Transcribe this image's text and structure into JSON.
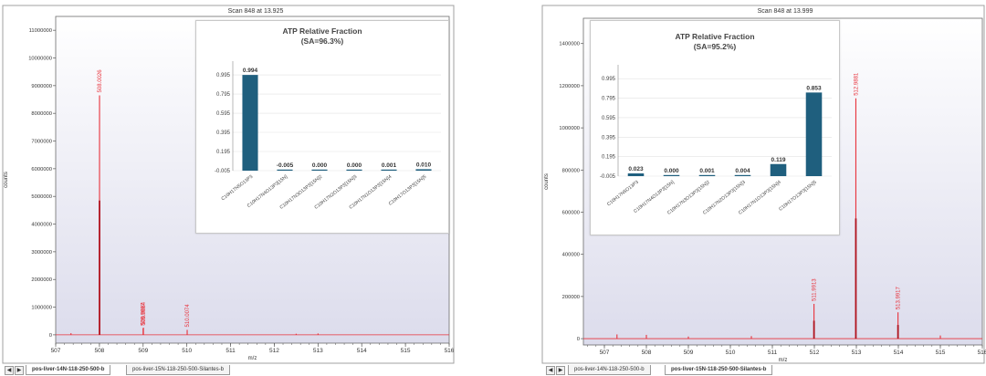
{
  "panels": [
    {
      "scan_title": "Scan 848 at 13.925",
      "tabs": [
        "pos-liver-14N-118-250-500-b",
        "pos-liver-15N-118-250-500-Silantes-b"
      ],
      "active_tab": 0,
      "spectrum": {
        "type": "line",
        "xlabel": "m/z",
        "ylabel": "counts",
        "xlim": [
          507,
          516
        ],
        "ylim": [
          -300000,
          11500000
        ],
        "xticks": [
          507,
          508,
          509,
          510,
          511,
          512,
          513,
          514,
          515,
          516
        ],
        "yticks": [
          0,
          1000000,
          2000000,
          3000000,
          4000000,
          5000000,
          6000000,
          7000000,
          8000000,
          9000000,
          10000000,
          11000000
        ],
        "ytick_labels": [
          "0",
          "1000000",
          "2000000",
          "3000000",
          "4000000",
          "5000000",
          "6000000",
          "7000000",
          "8000000",
          "9000000",
          "10000000",
          "11000000"
        ],
        "peaks": [
          {
            "mz": 508.0026,
            "intensity": 8650000,
            "label": "508.0026"
          },
          {
            "mz": 508.9997,
            "intensity": 230000,
            "label": "508.9997"
          },
          {
            "mz": 509.0064,
            "intensity": 260000,
            "label": "509.0064"
          },
          {
            "mz": 510.0074,
            "intensity": 180000,
            "label": "510.0074"
          },
          {
            "mz": 507.35,
            "intensity": 60000,
            "label": ""
          },
          {
            "mz": 512.5,
            "intensity": 40000,
            "label": ""
          },
          {
            "mz": 513.0,
            "intensity": 50000,
            "label": ""
          }
        ],
        "peak_overlays": [
          {
            "mz": 508.0026,
            "intensity": 4850000
          }
        ]
      },
      "inset": {
        "type": "bar",
        "title": "ATP Relative Fraction",
        "subtitle": "(SA=96.3%)",
        "ylim": [
          -0.005,
          1.1
        ],
        "yticks": [
          -0.005,
          0.195,
          0.395,
          0.595,
          0.795,
          0.995
        ],
        "ytick_labels": [
          "-0.005",
          "0.195",
          "0.395",
          "0.595",
          "0.795",
          "0.995"
        ],
        "categories": [
          "C10H17N5O13P3",
          "C10H17N4O13P3[15N]",
          "C10H17N3O13P3[15N]2",
          "C10H17N2O13P3[15N]3",
          "C10H17N1O13P3[15N]4",
          "C10H17O13P3[15N]5"
        ],
        "values": [
          0.994,
          -0.005,
          0.0,
          0.0,
          0.001,
          0.01
        ],
        "value_labels": [
          "0.994",
          "-0.005",
          "0.000",
          "0.000",
          "0.001",
          "0.010"
        ],
        "bar_color": "#1f5f7e"
      }
    },
    {
      "scan_title": "Scan 848 at 13.999",
      "tabs": [
        "pos-liver-14N-118-250-500-b",
        "pos-liver-15N-118-250-500-Silantes-b"
      ],
      "active_tab": 1,
      "spectrum": {
        "type": "line",
        "xlabel": "m/z",
        "ylabel": "counts",
        "xlim": [
          506.5,
          516
        ],
        "ylim": [
          -30000,
          1520000
        ],
        "xticks": [
          507,
          508,
          509,
          510,
          511,
          512,
          513,
          514,
          515,
          516
        ],
        "yticks": [
          0,
          200000,
          400000,
          600000,
          800000,
          1000000,
          1200000,
          1400000
        ],
        "ytick_labels": [
          "0",
          "200000",
          "400000",
          "600000",
          "800000",
          "1000000",
          "1200000",
          "1400000"
        ],
        "peaks": [
          {
            "mz": 511.9913,
            "intensity": 165000,
            "label": "511.9913"
          },
          {
            "mz": 512.9881,
            "intensity": 1140000,
            "label": "512.9881"
          },
          {
            "mz": 513.9917,
            "intensity": 125000,
            "label": "513.9917"
          },
          {
            "mz": 507.3,
            "intensity": 20000,
            "label": ""
          },
          {
            "mz": 508.0,
            "intensity": 18000,
            "label": ""
          },
          {
            "mz": 509.0,
            "intensity": 10000,
            "label": ""
          },
          {
            "mz": 510.5,
            "intensity": 12000,
            "label": ""
          },
          {
            "mz": 515.0,
            "intensity": 15000,
            "label": ""
          }
        ],
        "peak_overlays": [
          {
            "mz": 512.9881,
            "intensity": 570000
          },
          {
            "mz": 511.9913,
            "intensity": 85000
          },
          {
            "mz": 513.9917,
            "intensity": 65000
          }
        ]
      },
      "inset": {
        "type": "bar",
        "title": "ATP Relative Fraction",
        "subtitle": "(SA=95.2%)",
        "ylim": [
          -0.005,
          1.1
        ],
        "yticks": [
          -0.005,
          0.195,
          0.395,
          0.595,
          0.795,
          0.995
        ],
        "ytick_labels": [
          "-0.005",
          "0.195",
          "0.395",
          "0.595",
          "0.795",
          "0.995"
        ],
        "categories": [
          "C10H17N5O13P3",
          "C10H17N4O13P3[15N]",
          "C10H17N3O13P3[15N]2",
          "C10H17N2O13P3[15N]3",
          "C10H17N1O13P3[15N]4",
          "C10H17O13P3[15N]5"
        ],
        "values": [
          0.023,
          0.0,
          0.001,
          0.004,
          0.119,
          0.853
        ],
        "value_labels": [
          "0.023",
          "0.000",
          "0.001",
          "0.004",
          "0.119",
          "0.853"
        ],
        "bar_color": "#1f5f7e"
      }
    }
  ],
  "colors": {
    "spectrum": "#e8313a",
    "peak_label": "#e8313a",
    "frame": "#6b6b6b",
    "plot_bg_top": "#ffffff",
    "plot_bg_bottom": "#dcdcec"
  },
  "chart_data": [
    {
      "type": "line",
      "title": "Scan 848 at 13.925",
      "xlabel": "m/z",
      "ylabel": "counts",
      "xlim": [
        507,
        516
      ],
      "ylim": [
        0,
        11000000
      ],
      "x": [
        507.35,
        508.0026,
        508.9997,
        509.0064,
        510.0074,
        512.5,
        513.0
      ],
      "y": [
        60000,
        8650000,
        230000,
        260000,
        180000,
        40000,
        50000
      ]
    },
    {
      "type": "bar",
      "title": "ATP Relative Fraction",
      "subtitle": "(SA=96.3%)",
      "categories": [
        "C10H17N5O13P3",
        "C10H17N4O13P3[15N]",
        "C10H17N3O13P3[15N]2",
        "C10H17N2O13P3[15N]3",
        "C10H17N1O13P3[15N]4",
        "C10H17O13P3[15N]5"
      ],
      "values": [
        0.994,
        -0.005,
        0.0,
        0.0,
        0.001,
        0.01
      ],
      "ylim": [
        -0.005,
        0.995
      ]
    },
    {
      "type": "line",
      "title": "Scan 848 at 13.999",
      "xlabel": "m/z",
      "ylabel": "counts",
      "xlim": [
        506.5,
        516
      ],
      "ylim": [
        0,
        1400000
      ],
      "x": [
        507.3,
        508.0,
        509.0,
        510.5,
        511.9913,
        512.9881,
        513.9917,
        515.0
      ],
      "y": [
        20000,
        18000,
        10000,
        12000,
        165000,
        1140000,
        125000,
        15000
      ]
    },
    {
      "type": "bar",
      "title": "ATP Relative Fraction",
      "subtitle": "(SA=95.2%)",
      "categories": [
        "C10H17N5O13P3",
        "C10H17N4O13P3[15N]",
        "C10H17N3O13P3[15N]2",
        "C10H17N2O13P3[15N]3",
        "C10H17N1O13P3[15N]4",
        "C10H17O13P3[15N]5"
      ],
      "values": [
        0.023,
        0.0,
        0.001,
        0.004,
        0.119,
        0.853
      ],
      "ylim": [
        -0.005,
        0.995
      ]
    }
  ]
}
